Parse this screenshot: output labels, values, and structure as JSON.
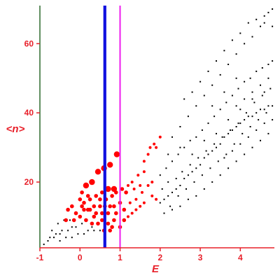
{
  "colors": {
    "background": "#ffffff",
    "axis": "#2d6a2d",
    "text": "#e8202a",
    "highlight_points": "#ff0000",
    "regular_points": "#000000",
    "blue_line": "#1010e0",
    "magenta_line": "#ee22ee"
  },
  "chart_data": {
    "type": "scatter",
    "xlabel": "E",
    "ylabel": "<n>",
    "xlim": [
      -1,
      4.85
    ],
    "ylim": [
      1,
      71
    ],
    "x_ticks": [
      {
        "value": -1,
        "label": "-1"
      },
      {
        "value": 0,
        "label": "0"
      },
      {
        "value": 1,
        "label": "1"
      },
      {
        "value": 2,
        "label": "2"
      },
      {
        "value": 3,
        "label": "3"
      },
      {
        "value": 4,
        "label": "4"
      }
    ],
    "y_ticks": [
      {
        "value": 20,
        "label": "20"
      },
      {
        "value": 40,
        "label": "40"
      },
      {
        "value": 60,
        "label": "60"
      }
    ],
    "vertical_lines": [
      {
        "x": 0.62,
        "color": "#1010e0"
      },
      {
        "x": 1.0,
        "color": "#ee22ee"
      }
    ],
    "highlighted_points": [
      [
        0.15,
        19
      ],
      [
        0.3,
        20
      ],
      [
        0.45,
        23
      ],
      [
        0.6,
        24
      ],
      [
        0.75,
        25
      ],
      [
        0.92,
        28
      ],
      [
        0.05,
        17
      ],
      [
        0.2,
        16
      ],
      [
        0.4,
        16
      ],
      [
        0.5,
        15
      ],
      [
        0.65,
        15
      ],
      [
        0.8,
        16
      ],
      [
        0.9,
        17
      ],
      [
        1.05,
        18
      ],
      [
        1.15,
        17
      ],
      [
        1.3,
        20
      ],
      [
        1.45,
        22
      ],
      [
        1.6,
        23
      ],
      [
        0.35,
        13
      ],
      [
        0.5,
        13
      ],
      [
        0.62,
        13
      ],
      [
        0.75,
        13
      ],
      [
        0.85,
        13
      ],
      [
        1.0,
        14
      ],
      [
        0.1,
        12
      ],
      [
        0.25,
        12
      ],
      [
        0.4,
        11
      ],
      [
        0.55,
        11
      ],
      [
        0.7,
        11
      ],
      [
        0.9,
        11
      ],
      [
        1.1,
        12
      ],
      [
        1.25,
        14
      ],
      [
        1.4,
        15
      ],
      [
        1.55,
        17
      ],
      [
        1.7,
        19
      ],
      [
        1.8,
        20
      ],
      [
        -0.1,
        11
      ],
      [
        0.0,
        10
      ],
      [
        0.15,
        9
      ],
      [
        0.3,
        8
      ],
      [
        0.45,
        8
      ],
      [
        0.7,
        8
      ],
      [
        0.85,
        9
      ],
      [
        1.2,
        10
      ],
      [
        1.4,
        12
      ],
      [
        1.6,
        14
      ],
      [
        1.8,
        16
      ],
      [
        1.9,
        15
      ],
      [
        -0.2,
        13
      ],
      [
        0.05,
        13
      ],
      [
        0.2,
        12
      ],
      [
        0.35,
        10
      ],
      [
        0.55,
        9
      ],
      [
        0.8,
        7
      ],
      [
        1.0,
        7
      ],
      [
        0.6,
        6
      ],
      [
        0.75,
        6
      ],
      [
        1.1,
        9
      ],
      [
        1.3,
        11
      ],
      [
        1.5,
        13
      ],
      [
        0.55,
        17
      ],
      [
        0.7,
        18
      ],
      [
        0.85,
        18
      ],
      [
        1.2,
        19
      ],
      [
        1.35,
        18
      ],
      [
        1.5,
        19
      ],
      [
        1.6,
        26
      ],
      [
        1.7,
        28
      ],
      [
        1.75,
        30
      ],
      [
        1.85,
        31
      ],
      [
        1.9,
        30
      ],
      [
        2.0,
        33
      ],
      [
        -0.3,
        12
      ],
      [
        -0.35,
        9
      ],
      [
        -0.15,
        9
      ],
      [
        0.0,
        15
      ],
      [
        0.1,
        14
      ],
      [
        0.25,
        15
      ]
    ],
    "regular_points": [
      [
        -0.9,
        2
      ],
      [
        -0.8,
        3
      ],
      [
        -0.75,
        4
      ],
      [
        -0.65,
        4
      ],
      [
        -0.6,
        5
      ],
      [
        -0.5,
        5
      ],
      [
        -0.45,
        6
      ],
      [
        -0.3,
        6
      ],
      [
        -0.2,
        7
      ],
      [
        -0.7,
        6
      ],
      [
        -0.55,
        8
      ],
      [
        -0.4,
        9
      ],
      [
        -0.25,
        9
      ],
      [
        -0.5,
        3
      ],
      [
        -0.35,
        4
      ],
      [
        -0.2,
        4
      ],
      [
        -0.05,
        5
      ],
      [
        0.1,
        5
      ],
      [
        0.2,
        6
      ],
      [
        0.35,
        6
      ],
      [
        0.5,
        6
      ],
      [
        -0.1,
        7
      ],
      [
        0.05,
        8
      ],
      [
        0.3,
        7
      ],
      [
        2.0,
        14
      ],
      [
        2.1,
        15
      ],
      [
        2.2,
        16
      ],
      [
        2.3,
        17
      ],
      [
        2.4,
        18
      ],
      [
        2.5,
        19
      ],
      [
        2.6,
        21
      ],
      [
        2.7,
        22
      ],
      [
        2.8,
        23
      ],
      [
        2.9,
        24
      ],
      [
        3.0,
        25
      ],
      [
        3.1,
        27
      ],
      [
        3.2,
        28
      ],
      [
        3.3,
        29
      ],
      [
        3.4,
        30
      ],
      [
        3.5,
        31
      ],
      [
        3.6,
        33
      ],
      [
        3.7,
        34
      ],
      [
        3.8,
        35
      ],
      [
        3.9,
        36
      ],
      [
        4.0,
        37
      ],
      [
        4.1,
        38
      ],
      [
        4.2,
        39
      ],
      [
        4.3,
        39
      ],
      [
        4.4,
        40
      ],
      [
        4.5,
        41
      ],
      [
        4.6,
        41
      ],
      [
        4.7,
        42
      ],
      [
        4.8,
        42
      ],
      [
        2.0,
        22
      ],
      [
        2.15,
        24
      ],
      [
        2.3,
        26
      ],
      [
        2.45,
        28
      ],
      [
        2.6,
        30
      ],
      [
        2.75,
        32
      ],
      [
        2.9,
        33
      ],
      [
        3.05,
        35
      ],
      [
        3.2,
        37
      ],
      [
        3.35,
        39
      ],
      [
        3.5,
        41
      ],
      [
        3.65,
        43
      ],
      [
        3.8,
        45
      ],
      [
        3.95,
        47
      ],
      [
        4.1,
        49
      ],
      [
        4.25,
        50
      ],
      [
        4.4,
        52
      ],
      [
        4.55,
        53
      ],
      [
        4.7,
        54
      ],
      [
        4.8,
        55
      ],
      [
        2.3,
        33
      ],
      [
        2.5,
        36
      ],
      [
        2.7,
        39
      ],
      [
        2.9,
        42
      ],
      [
        3.1,
        45
      ],
      [
        3.3,
        48
      ],
      [
        3.5,
        51
      ],
      [
        3.7,
        54
      ],
      [
        3.9,
        57
      ],
      [
        4.1,
        60
      ],
      [
        4.3,
        62
      ],
      [
        4.5,
        65
      ],
      [
        4.6,
        68
      ],
      [
        4.7,
        69
      ],
      [
        4.8,
        70
      ],
      [
        2.2,
        20
      ],
      [
        2.4,
        21
      ],
      [
        2.55,
        23
      ],
      [
        2.75,
        25
      ],
      [
        2.95,
        27
      ],
      [
        3.15,
        29
      ],
      [
        3.35,
        31
      ],
      [
        3.55,
        33
      ],
      [
        3.75,
        35
      ],
      [
        3.95,
        37
      ],
      [
        4.15,
        40
      ],
      [
        4.35,
        43
      ],
      [
        4.55,
        45
      ],
      [
        4.75,
        47
      ],
      [
        2.1,
        11
      ],
      [
        2.3,
        12
      ],
      [
        2.5,
        13
      ],
      [
        2.7,
        15
      ],
      [
        2.9,
        16
      ],
      [
        3.1,
        18
      ],
      [
        3.3,
        20
      ],
      [
        3.5,
        22
      ],
      [
        3.7,
        24
      ],
      [
        3.9,
        26
      ],
      [
        4.1,
        28
      ],
      [
        4.3,
        30
      ],
      [
        4.5,
        32
      ],
      [
        4.7,
        34
      ],
      [
        2.6,
        44
      ],
      [
        2.8,
        46
      ],
      [
        3.0,
        49
      ],
      [
        3.2,
        52
      ],
      [
        3.4,
        55
      ],
      [
        3.6,
        58
      ],
      [
        3.8,
        61
      ],
      [
        4.0,
        63
      ],
      [
        4.2,
        66
      ],
      [
        4.4,
        67
      ],
      [
        4.6,
        66
      ],
      [
        4.8,
        65
      ],
      [
        3.9,
        42
      ],
      [
        4.1,
        44
      ],
      [
        4.3,
        46
      ],
      [
        4.5,
        48
      ],
      [
        4.7,
        50
      ],
      [
        4.2,
        33
      ],
      [
        4.4,
        35
      ],
      [
        4.6,
        37
      ],
      [
        4.8,
        38
      ],
      [
        3.6,
        27
      ],
      [
        3.8,
        29
      ],
      [
        4.0,
        31
      ],
      [
        2.2,
        28
      ],
      [
        2.5,
        30
      ],
      [
        2.8,
        28
      ],
      [
        3.1,
        32
      ],
      [
        3.4,
        34
      ],
      [
        3.7,
        38
      ],
      [
        4.0,
        41
      ],
      [
        4.3,
        44
      ],
      [
        4.6,
        46
      ],
      [
        3.3,
        42
      ],
      [
        3.6,
        46
      ],
      [
        3.9,
        50
      ],
      [
        2.05,
        18
      ],
      [
        2.25,
        13
      ],
      [
        2.45,
        16
      ],
      [
        2.65,
        18
      ],
      [
        2.85,
        20
      ],
      [
        3.05,
        22
      ],
      [
        3.25,
        24
      ],
      [
        3.45,
        26
      ],
      [
        3.65,
        28
      ],
      [
        3.85,
        31
      ],
      [
        4.05,
        34
      ],
      [
        4.25,
        36
      ],
      [
        4.45,
        38
      ],
      [
        4.65,
        40
      ]
    ]
  }
}
